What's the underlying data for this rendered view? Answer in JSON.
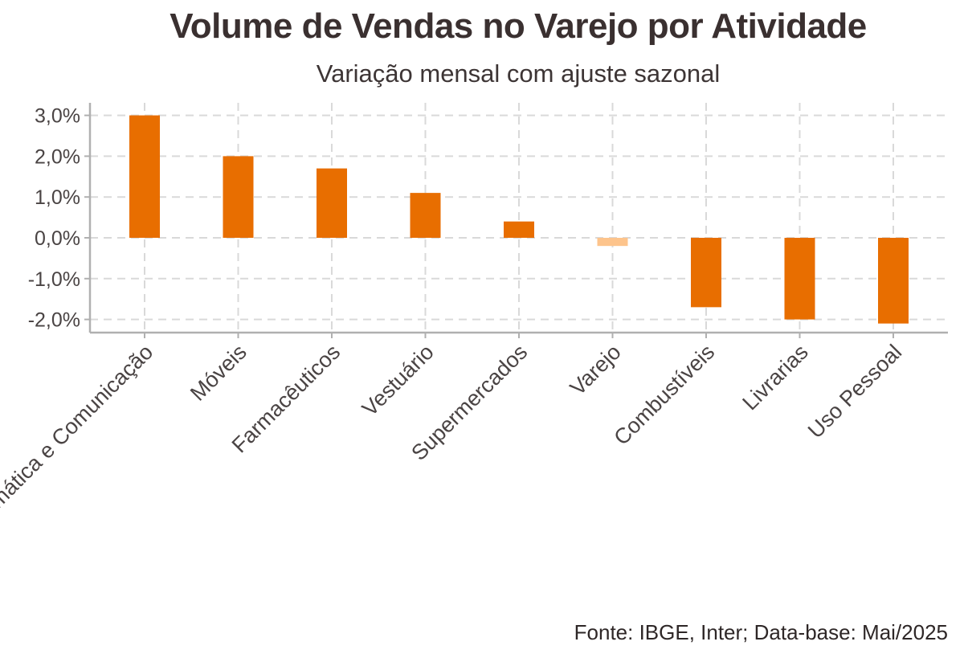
{
  "title": "Volume de Vendas no Varejo por Atividade",
  "subtitle": "Variação mensal com ajuste sazonal",
  "caption": "Fonte: IBGE, Inter; Data-base: Mai/2025",
  "colors": {
    "bar": "#e86e00",
    "highlight": "#fdc48c",
    "grid": "#d9d9d9",
    "axis": "#b0b0b0"
  },
  "chart_data": {
    "type": "bar",
    "categories": [
      "Informática e Comunicação",
      "Móveis",
      "Farmacêuticos",
      "Vestuário",
      "Supermercados",
      "Varejo",
      "Combustíveis",
      "Livrarias",
      "Uso Pessoal"
    ],
    "values": [
      3.0,
      2.0,
      1.7,
      1.1,
      0.4,
      -0.2,
      -1.7,
      -2.0,
      -2.1
    ],
    "highlight_category": "Varejo",
    "ylim": [
      -2.3,
      3.2
    ],
    "yticks": [
      3.0,
      2.0,
      1.0,
      0.0,
      -1.0,
      -2.0
    ],
    "ytick_labels": [
      "3,0%",
      "2,0%",
      "1,0%",
      "0,0%",
      "-1,0%",
      "-2,0%"
    ],
    "grid": true,
    "xlabel": "",
    "ylabel": ""
  }
}
